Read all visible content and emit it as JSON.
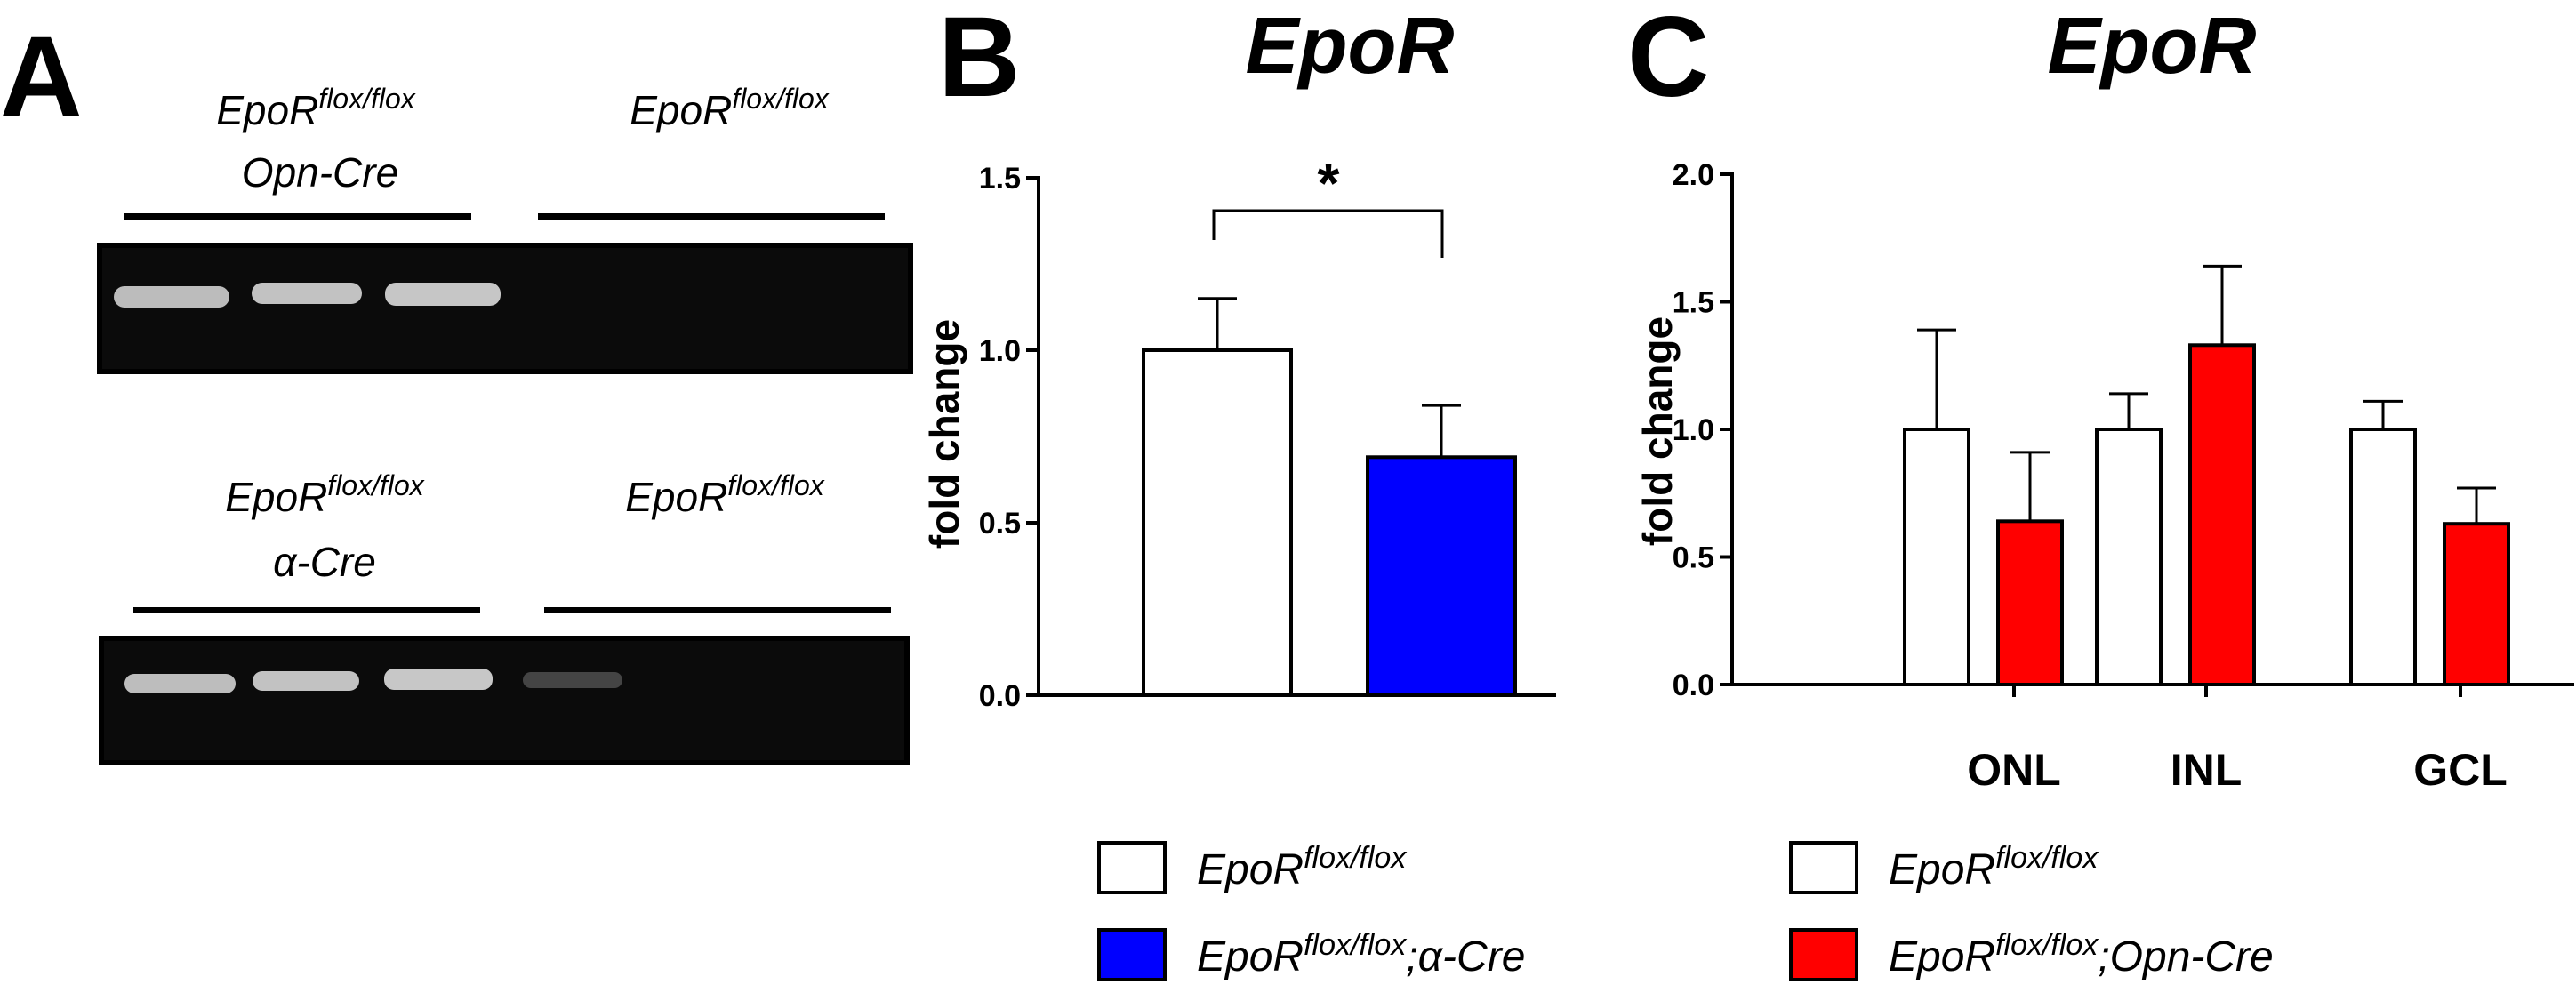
{
  "panels": {
    "a": {
      "letter": "A",
      "gels": [
        {
          "left_group": {
            "base": "EpoR",
            "sup": "flox/flox",
            "line2": "Opn-Cre"
          },
          "right_group": {
            "base": "EpoR",
            "sup": "flox/flox"
          }
        },
        {
          "left_group": {
            "base": "EpoR",
            "sup": "flox/flox",
            "line2": "α-Cre"
          },
          "right_group": {
            "base": "EpoR",
            "sup": "flox/flox"
          }
        }
      ]
    },
    "b": {
      "letter": "B",
      "title": "EpoR"
    },
    "c": {
      "letter": "C",
      "title": "EpoR"
    }
  },
  "chart_data": [
    {
      "panel": "B",
      "type": "bar",
      "title": "EpoR",
      "ylabel": "fold change",
      "ylim": [
        0,
        1.5
      ],
      "yticks": [
        "0.0",
        "0.5",
        "1.0",
        "1.5"
      ],
      "ytick_values": [
        0,
        0.5,
        1.0,
        1.5
      ],
      "grid": false,
      "series": [
        {
          "name": "EpoR flox/flox",
          "value": 1.0,
          "error": 0.15,
          "color": "#ffffff"
        },
        {
          "name": "EpoR flox/flox;α-Cre",
          "value": 0.69,
          "error": 0.15,
          "color": "#0000ff"
        }
      ],
      "significance": "*",
      "legend": {
        "placement": "bottom",
        "entries": [
          {
            "base": "EpoR",
            "sup": "flox/flox",
            "suffix": "",
            "color": "#ffffff"
          },
          {
            "base": "EpoR",
            "sup": "flox/flox",
            "suffix": ";α-Cre",
            "color": "#0000ff"
          }
        ]
      }
    },
    {
      "panel": "C",
      "type": "bar",
      "title": "EpoR",
      "ylabel": "fold change",
      "ylim": [
        0,
        2.0
      ],
      "yticks": [
        "0.0",
        "0.5",
        "1.0",
        "1.5",
        "2.0"
      ],
      "ytick_values": [
        0,
        0.5,
        1.0,
        1.5,
        2.0
      ],
      "grid": false,
      "categories": [
        "ONL",
        "INL",
        "GCL"
      ],
      "series": [
        {
          "name": "EpoR flox/flox",
          "color": "#ffffff",
          "values": [
            1.0,
            1.0,
            1.0
          ],
          "errors": [
            0.39,
            0.14,
            0.11
          ]
        },
        {
          "name": "EpoR flox/flox;Opn-Cre",
          "color": "#ff0000",
          "values": [
            0.64,
            1.33,
            0.63
          ],
          "errors": [
            0.27,
            0.31,
            0.14
          ]
        }
      ],
      "legend": {
        "placement": "bottom",
        "entries": [
          {
            "base": "EpoR",
            "sup": "flox/flox",
            "suffix": "",
            "color": "#ffffff"
          },
          {
            "base": "EpoR",
            "sup": "flox/flox",
            "suffix": ";Opn-Cre",
            "color": "#ff0000"
          }
        ]
      }
    }
  ]
}
